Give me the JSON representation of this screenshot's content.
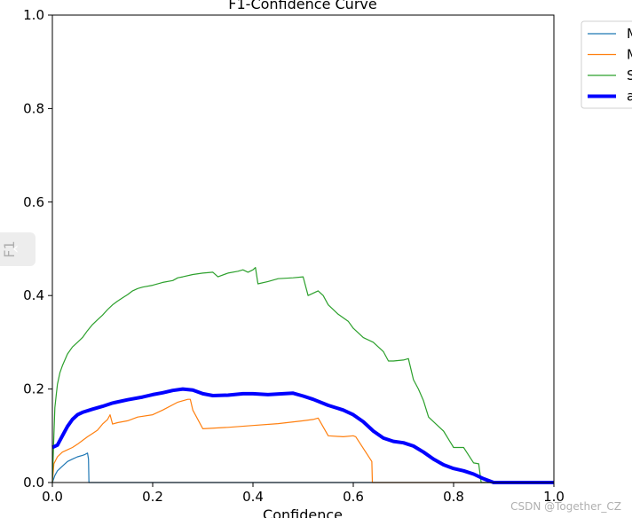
{
  "chart_data": {
    "type": "line",
    "title": "F1-Confidence Curve",
    "xlabel": "Confidence",
    "ylabel": "F1",
    "xlim": [
      0,
      1
    ],
    "ylim": [
      0,
      1
    ],
    "x_ticks": [
      "0.0",
      "0.2",
      "0.4",
      "0.6",
      "0.8",
      "1.0"
    ],
    "y_ticks": [
      "0.0",
      "0.2",
      "0.4",
      "0.6",
      "0.8",
      "1.0"
    ],
    "grid": false,
    "legend_position": "outside top-right (clipped)",
    "series": [
      {
        "name": "M",
        "color": "#1f77b4",
        "width": 1.2,
        "points": [
          [
            0,
            0.0
          ],
          [
            0.005,
            0.015
          ],
          [
            0.01,
            0.025
          ],
          [
            0.02,
            0.035
          ],
          [
            0.03,
            0.045
          ],
          [
            0.04,
            0.05
          ],
          [
            0.05,
            0.055
          ],
          [
            0.06,
            0.058
          ],
          [
            0.065,
            0.06
          ],
          [
            0.07,
            0.063
          ],
          [
            0.072,
            0.05
          ],
          [
            0.073,
            0.0
          ],
          [
            1.0,
            0.0
          ]
        ]
      },
      {
        "name": "M",
        "color": "#ff7f0e",
        "width": 1.2,
        "points": [
          [
            0,
            0.0
          ],
          [
            0.003,
            0.04
          ],
          [
            0.01,
            0.055
          ],
          [
            0.02,
            0.065
          ],
          [
            0.03,
            0.07
          ],
          [
            0.04,
            0.075
          ],
          [
            0.05,
            0.082
          ],
          [
            0.06,
            0.09
          ],
          [
            0.07,
            0.098
          ],
          [
            0.08,
            0.105
          ],
          [
            0.09,
            0.112
          ],
          [
            0.1,
            0.125
          ],
          [
            0.11,
            0.135
          ],
          [
            0.115,
            0.145
          ],
          [
            0.12,
            0.125
          ],
          [
            0.13,
            0.128
          ],
          [
            0.15,
            0.132
          ],
          [
            0.17,
            0.14
          ],
          [
            0.2,
            0.145
          ],
          [
            0.22,
            0.155
          ],
          [
            0.25,
            0.172
          ],
          [
            0.27,
            0.178
          ],
          [
            0.275,
            0.178
          ],
          [
            0.28,
            0.155
          ],
          [
            0.3,
            0.115
          ],
          [
            0.35,
            0.118
          ],
          [
            0.4,
            0.122
          ],
          [
            0.45,
            0.126
          ],
          [
            0.5,
            0.132
          ],
          [
            0.52,
            0.135
          ],
          [
            0.53,
            0.138
          ],
          [
            0.55,
            0.1
          ],
          [
            0.58,
            0.098
          ],
          [
            0.6,
            0.1
          ],
          [
            0.605,
            0.098
          ],
          [
            0.637,
            0.045
          ],
          [
            0.638,
            0.0
          ],
          [
            1.0,
            0.0
          ]
        ]
      },
      {
        "name": "S",
        "color": "#2ca02c",
        "width": 1.2,
        "points": [
          [
            0,
            0.0
          ],
          [
            0.003,
            0.1
          ],
          [
            0.005,
            0.16
          ],
          [
            0.008,
            0.19
          ],
          [
            0.01,
            0.21
          ],
          [
            0.015,
            0.235
          ],
          [
            0.02,
            0.25
          ],
          [
            0.03,
            0.275
          ],
          [
            0.04,
            0.29
          ],
          [
            0.05,
            0.3
          ],
          [
            0.06,
            0.31
          ],
          [
            0.07,
            0.325
          ],
          [
            0.08,
            0.338
          ],
          [
            0.09,
            0.348
          ],
          [
            0.1,
            0.358
          ],
          [
            0.11,
            0.37
          ],
          [
            0.12,
            0.38
          ],
          [
            0.13,
            0.388
          ],
          [
            0.14,
            0.395
          ],
          [
            0.15,
            0.402
          ],
          [
            0.16,
            0.41
          ],
          [
            0.17,
            0.415
          ],
          [
            0.18,
            0.418
          ],
          [
            0.2,
            0.422
          ],
          [
            0.22,
            0.428
          ],
          [
            0.24,
            0.432
          ],
          [
            0.25,
            0.438
          ],
          [
            0.26,
            0.44
          ],
          [
            0.28,
            0.445
          ],
          [
            0.3,
            0.448
          ],
          [
            0.32,
            0.45
          ],
          [
            0.33,
            0.44
          ],
          [
            0.35,
            0.448
          ],
          [
            0.37,
            0.452
          ],
          [
            0.38,
            0.455
          ],
          [
            0.39,
            0.45
          ],
          [
            0.4,
            0.455
          ],
          [
            0.405,
            0.46
          ],
          [
            0.41,
            0.425
          ],
          [
            0.43,
            0.43
          ],
          [
            0.45,
            0.436
          ],
          [
            0.48,
            0.438
          ],
          [
            0.5,
            0.44
          ],
          [
            0.505,
            0.42
          ],
          [
            0.51,
            0.4
          ],
          [
            0.53,
            0.41
          ],
          [
            0.54,
            0.4
          ],
          [
            0.55,
            0.38
          ],
          [
            0.57,
            0.36
          ],
          [
            0.59,
            0.345
          ],
          [
            0.6,
            0.33
          ],
          [
            0.62,
            0.31
          ],
          [
            0.64,
            0.3
          ],
          [
            0.66,
            0.28
          ],
          [
            0.67,
            0.26
          ],
          [
            0.68,
            0.26
          ],
          [
            0.7,
            0.262
          ],
          [
            0.71,
            0.265
          ],
          [
            0.72,
            0.22
          ],
          [
            0.73,
            0.2
          ],
          [
            0.74,
            0.175
          ],
          [
            0.75,
            0.14
          ],
          [
            0.77,
            0.12
          ],
          [
            0.78,
            0.11
          ],
          [
            0.8,
            0.075
          ],
          [
            0.82,
            0.075
          ],
          [
            0.84,
            0.042
          ],
          [
            0.85,
            0.04
          ],
          [
            0.855,
            0.0
          ],
          [
            1.0,
            0.0
          ]
        ]
      },
      {
        "name": "a",
        "color": "#0000ff",
        "width": 4,
        "points": [
          [
            0,
            0.075
          ],
          [
            0.01,
            0.08
          ],
          [
            0.02,
            0.1
          ],
          [
            0.03,
            0.12
          ],
          [
            0.04,
            0.135
          ],
          [
            0.05,
            0.145
          ],
          [
            0.06,
            0.15
          ],
          [
            0.08,
            0.157
          ],
          [
            0.1,
            0.163
          ],
          [
            0.12,
            0.17
          ],
          [
            0.15,
            0.177
          ],
          [
            0.18,
            0.183
          ],
          [
            0.2,
            0.188
          ],
          [
            0.22,
            0.192
          ],
          [
            0.24,
            0.197
          ],
          [
            0.26,
            0.2
          ],
          [
            0.28,
            0.198
          ],
          [
            0.3,
            0.19
          ],
          [
            0.32,
            0.186
          ],
          [
            0.35,
            0.187
          ],
          [
            0.38,
            0.19
          ],
          [
            0.4,
            0.19
          ],
          [
            0.43,
            0.188
          ],
          [
            0.46,
            0.19
          ],
          [
            0.48,
            0.191
          ],
          [
            0.5,
            0.185
          ],
          [
            0.52,
            0.178
          ],
          [
            0.55,
            0.165
          ],
          [
            0.58,
            0.155
          ],
          [
            0.6,
            0.145
          ],
          [
            0.62,
            0.13
          ],
          [
            0.64,
            0.11
          ],
          [
            0.66,
            0.095
          ],
          [
            0.68,
            0.088
          ],
          [
            0.7,
            0.085
          ],
          [
            0.72,
            0.078
          ],
          [
            0.74,
            0.065
          ],
          [
            0.76,
            0.05
          ],
          [
            0.78,
            0.038
          ],
          [
            0.8,
            0.03
          ],
          [
            0.82,
            0.025
          ],
          [
            0.84,
            0.018
          ],
          [
            0.86,
            0.008
          ],
          [
            0.88,
            0.0
          ],
          [
            1.0,
            0.0
          ]
        ]
      }
    ]
  },
  "watermark": "CSDN @Together_CZ"
}
